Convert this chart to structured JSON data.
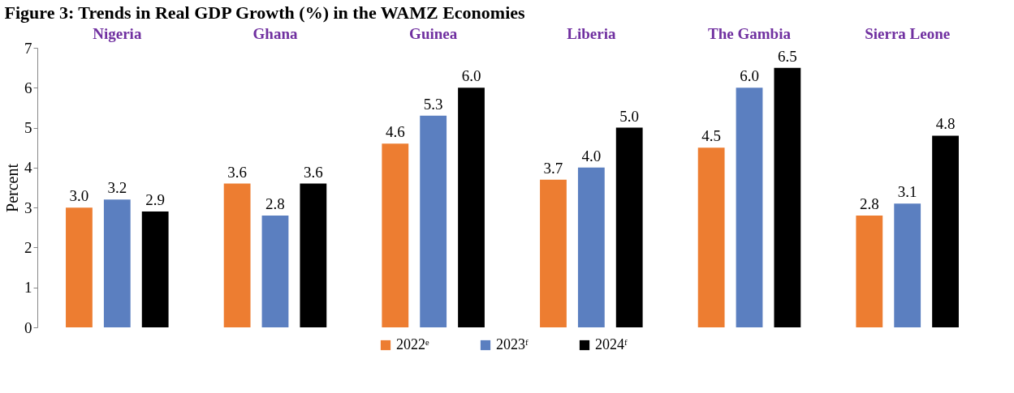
{
  "chart_data": {
    "type": "bar",
    "title": "Figure 3: Trends in Real GDP Growth (%) in the WAMZ Economies",
    "ylabel": "Percent",
    "categories": [
      "Nigeria",
      "Ghana",
      "Guinea",
      "Liberia",
      "The Gambia",
      "Sierra Leone"
    ],
    "series": [
      {
        "name": "2022ᵉ",
        "color": "#ed7d31",
        "values": [
          3.0,
          3.6,
          4.6,
          3.7,
          4.5,
          2.8
        ],
        "value_labels": [
          "3.0",
          "3.6",
          "4.6",
          "3.7",
          "4.5",
          "2.8"
        ]
      },
      {
        "name": "2023ᶠ",
        "color": "#5b7fc0",
        "values": [
          3.2,
          2.8,
          5.3,
          4.0,
          6.0,
          3.1
        ],
        "value_labels": [
          "3.2",
          "2.8",
          "5.3",
          "4.0",
          "6.0",
          "3.1"
        ]
      },
      {
        "name": "2024ᶠ",
        "color": "#000000",
        "values": [
          2.9,
          3.6,
          6.0,
          5.0,
          6.5,
          4.8
        ],
        "value_labels": [
          "2.9",
          "3.6",
          "6.0",
          "5.0",
          "6.5",
          "4.8"
        ]
      }
    ],
    "ylim": [
      0,
      7
    ],
    "yticks": [
      0,
      1,
      2,
      3,
      4,
      5,
      6,
      7
    ],
    "grid": false,
    "legend": "bottom"
  }
}
